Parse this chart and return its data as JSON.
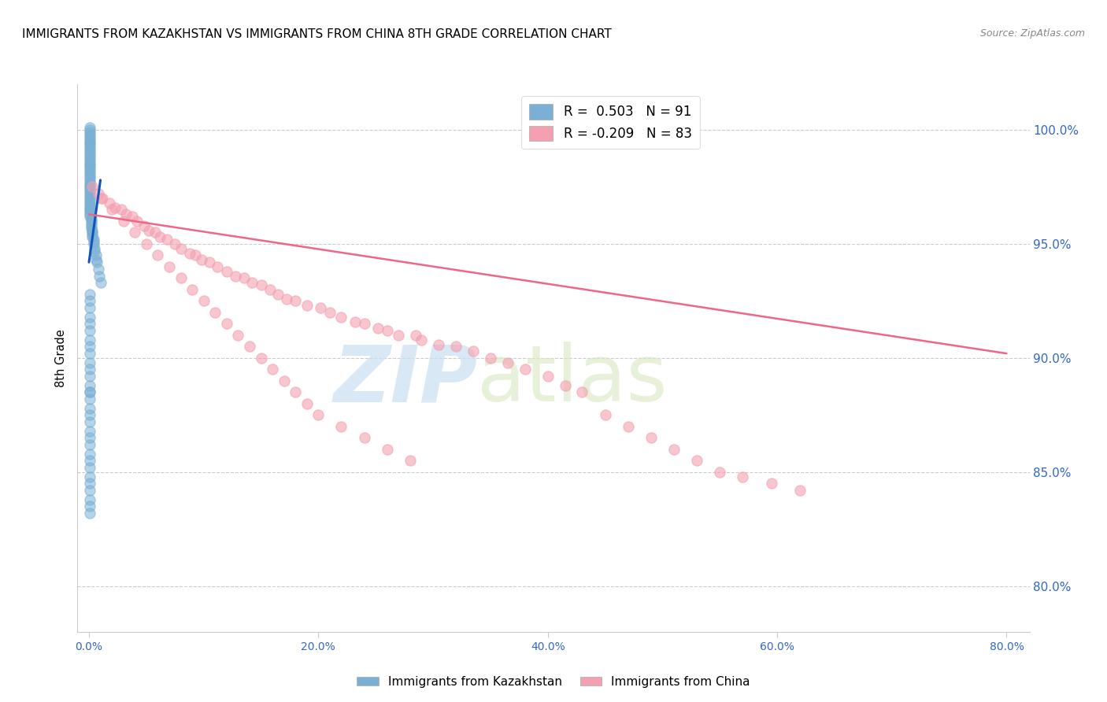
{
  "title": "IMMIGRANTS FROM KAZAKHSTAN VS IMMIGRANTS FROM CHINA 8TH GRADE CORRELATION CHART",
  "source": "Source: ZipAtlas.com",
  "ylabel": "8th Grade",
  "xlabel_ticks": [
    "0.0%",
    "20.0%",
    "40.0%",
    "60.0%",
    "80.0%"
  ],
  "xlabel_values": [
    0,
    20,
    40,
    60,
    80
  ],
  "ylabel_ticks": [
    "100.0%",
    "95.0%",
    "90.0%",
    "85.0%",
    "80.0%"
  ],
  "ylabel_values": [
    100,
    95,
    90,
    85,
    80
  ],
  "xlim": [
    -1,
    82
  ],
  "ylim": [
    78,
    102
  ],
  "legend_entries": [
    {
      "label": "Immigrants from Kazakhstan",
      "color": "#7ab0d4",
      "R": "0.503",
      "N": "91"
    },
    {
      "label": "Immigrants from China",
      "color": "#f4a0b0",
      "R": "-0.209",
      "N": "83"
    }
  ],
  "kazakhstan_x": [
    0.05,
    0.05,
    0.05,
    0.05,
    0.05,
    0.05,
    0.05,
    0.05,
    0.05,
    0.05,
    0.05,
    0.05,
    0.05,
    0.05,
    0.05,
    0.05,
    0.05,
    0.05,
    0.05,
    0.05,
    0.05,
    0.05,
    0.05,
    0.05,
    0.05,
    0.05,
    0.05,
    0.05,
    0.05,
    0.05,
    0.1,
    0.1,
    0.1,
    0.1,
    0.1,
    0.1,
    0.1,
    0.1,
    0.1,
    0.1,
    0.2,
    0.2,
    0.2,
    0.2,
    0.2,
    0.3,
    0.3,
    0.3,
    0.3,
    0.4,
    0.4,
    0.4,
    0.5,
    0.5,
    0.6,
    0.6,
    0.7,
    0.8,
    0.9,
    1.0,
    0.05,
    0.05,
    0.05,
    0.05,
    0.05,
    0.05,
    0.05,
    0.05,
    0.05,
    0.05,
    0.05,
    0.05,
    0.05,
    0.05,
    0.05,
    0.05,
    0.05,
    0.05,
    0.05,
    0.05,
    0.05,
    0.05,
    0.05,
    0.05,
    0.05,
    0.05,
    0.05,
    0.05,
    0.05,
    0.05,
    0.05
  ],
  "kazakhstan_y": [
    100.1,
    100.0,
    99.9,
    99.8,
    99.7,
    99.6,
    99.5,
    99.4,
    99.3,
    99.2,
    99.1,
    99.0,
    98.9,
    98.8,
    98.7,
    98.6,
    98.5,
    98.4,
    98.3,
    98.2,
    98.1,
    98.0,
    97.9,
    97.8,
    97.7,
    97.6,
    97.5,
    97.4,
    97.3,
    97.2,
    97.1,
    97.0,
    96.9,
    96.8,
    96.7,
    96.6,
    96.5,
    96.4,
    96.3,
    96.2,
    96.1,
    96.0,
    95.9,
    95.8,
    95.7,
    95.6,
    95.5,
    95.4,
    95.3,
    95.2,
    95.1,
    95.0,
    94.8,
    94.7,
    94.5,
    94.3,
    94.2,
    93.9,
    93.6,
    93.3,
    92.8,
    92.5,
    92.2,
    91.8,
    91.5,
    91.2,
    90.8,
    90.5,
    90.2,
    89.8,
    89.5,
    89.2,
    88.8,
    88.5,
    88.2,
    87.8,
    87.5,
    87.2,
    86.8,
    86.5,
    86.2,
    85.8,
    85.5,
    85.2,
    84.8,
    84.5,
    84.2,
    83.8,
    83.5,
    83.2,
    88.5
  ],
  "china_x": [
    0.3,
    0.8,
    1.2,
    1.8,
    2.3,
    2.8,
    3.2,
    3.8,
    4.2,
    4.8,
    5.2,
    5.8,
    6.2,
    6.8,
    7.5,
    8.0,
    8.8,
    9.3,
    9.8,
    10.5,
    11.2,
    12.0,
    12.8,
    13.5,
    14.2,
    15.0,
    15.8,
    16.5,
    17.2,
    18.0,
    19.0,
    20.2,
    21.0,
    22.0,
    23.2,
    24.0,
    25.2,
    26.0,
    27.0,
    28.5,
    29.0,
    30.5,
    32.0,
    33.5,
    35.0,
    36.5,
    38.0,
    40.0,
    41.5,
    43.0,
    45.0,
    47.0,
    49.0,
    51.0,
    53.0,
    55.0,
    57.0,
    59.5,
    62.0,
    1.0,
    2.0,
    3.0,
    4.0,
    5.0,
    6.0,
    7.0,
    8.0,
    9.0,
    10.0,
    11.0,
    12.0,
    13.0,
    14.0,
    15.0,
    16.0,
    17.0,
    18.0,
    19.0,
    20.0,
    22.0,
    24.0,
    26.0,
    28.0
  ],
  "china_y": [
    97.5,
    97.2,
    97.0,
    96.8,
    96.6,
    96.5,
    96.3,
    96.2,
    96.0,
    95.8,
    95.6,
    95.5,
    95.3,
    95.2,
    95.0,
    94.8,
    94.6,
    94.5,
    94.3,
    94.2,
    94.0,
    93.8,
    93.6,
    93.5,
    93.3,
    93.2,
    93.0,
    92.8,
    92.6,
    92.5,
    92.3,
    92.2,
    92.0,
    91.8,
    91.6,
    91.5,
    91.3,
    91.2,
    91.0,
    91.0,
    90.8,
    90.6,
    90.5,
    90.3,
    90.0,
    89.8,
    89.5,
    89.2,
    88.8,
    88.5,
    87.5,
    87.0,
    86.5,
    86.0,
    85.5,
    85.0,
    84.8,
    84.5,
    84.2,
    97.0,
    96.5,
    96.0,
    95.5,
    95.0,
    94.5,
    94.0,
    93.5,
    93.0,
    92.5,
    92.0,
    91.5,
    91.0,
    90.5,
    90.0,
    89.5,
    89.0,
    88.5,
    88.0,
    87.5,
    87.0,
    86.5,
    86.0,
    85.5
  ],
  "kazakhstan_trend": {
    "color": "#1155bb",
    "x": [
      0.0,
      1.0
    ],
    "y": [
      94.2,
      97.8
    ]
  },
  "china_trend": {
    "color": "#ee6688",
    "x": [
      0.0,
      80.0
    ],
    "y": [
      96.3,
      90.2
    ]
  },
  "watermark_zip": "ZIP",
  "watermark_atlas": "atlas",
  "watermark_color": "#c8dff0",
  "background_color": "#ffffff",
  "grid_color": "#cccccc",
  "title_fontsize": 11,
  "axis_tick_color": "#3366cc"
}
